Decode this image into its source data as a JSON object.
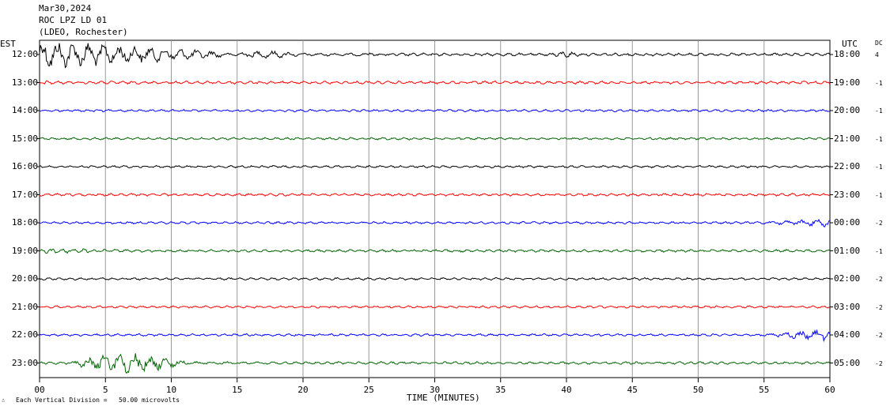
{
  "header": {
    "date": "Mar30,2024",
    "station": "ROC LPZ LD 01",
    "network": "(LDEO, Rochester)"
  },
  "left_zone": "EST",
  "right_zone": "UTC",
  "dc_label": "DC",
  "footer": {
    "scale_text": "Each Vertical Division =   50.00 microvolts",
    "corner_mark": "∴"
  },
  "chart_data": {
    "type": "line",
    "title": "",
    "xlabel": "TIME (MINUTES)",
    "ylabel": "",
    "xlim": [
      0,
      60
    ],
    "x_ticks": [
      "00",
      "5",
      "10",
      "15",
      "20",
      "25",
      "30",
      "35",
      "40",
      "45",
      "50",
      "55",
      "60"
    ],
    "grid": true,
    "trace_colors": [
      "#000000",
      "#ff0000",
      "#0000ff",
      "#006400"
    ],
    "rows": [
      {
        "est": "12:00",
        "utc": "18:00",
        "dc": "4",
        "base_amp": 2.0,
        "events": [
          {
            "start": 0,
            "end": 14,
            "amp": 20
          },
          {
            "start": 14,
            "end": 25,
            "amp": 6
          },
          {
            "start": 38,
            "end": 44,
            "amp": 5
          }
        ]
      },
      {
        "est": "13:00",
        "utc": "19:00",
        "dc": "-1",
        "base_amp": 2.0,
        "events": [
          {
            "start": 0,
            "end": 2,
            "amp": 4
          }
        ]
      },
      {
        "est": "14:00",
        "utc": "20:00",
        "dc": "-1",
        "base_amp": 1.6,
        "events": []
      },
      {
        "est": "15:00",
        "utc": "21:00",
        "dc": "-1",
        "base_amp": 1.6,
        "events": []
      },
      {
        "est": "16:00",
        "utc": "22:00",
        "dc": "-1",
        "base_amp": 1.6,
        "events": []
      },
      {
        "est": "17:00",
        "utc": "23:00",
        "dc": "-1",
        "base_amp": 1.8,
        "events": []
      },
      {
        "est": "18:00",
        "utc": "00:00",
        "dc": "-2",
        "base_amp": 1.6,
        "events": [
          {
            "start": 55,
            "end": 60,
            "amp": 6
          }
        ]
      },
      {
        "est": "19:00",
        "utc": "01:00",
        "dc": "-1",
        "base_amp": 1.8,
        "events": [
          {
            "start": 0,
            "end": 10,
            "amp": 4
          }
        ]
      },
      {
        "est": "20:00",
        "utc": "02:00",
        "dc": "-2",
        "base_amp": 1.6,
        "events": []
      },
      {
        "est": "21:00",
        "utc": "03:00",
        "dc": "-2",
        "base_amp": 1.6,
        "events": []
      },
      {
        "est": "22:00",
        "utc": "04:00",
        "dc": "-2",
        "base_amp": 1.6,
        "events": [
          {
            "start": 55,
            "end": 60,
            "amp": 8
          }
        ]
      },
      {
        "est": "23:00",
        "utc": "05:00",
        "dc": "-2",
        "base_amp": 1.8,
        "events": [
          {
            "start": 2,
            "end": 18,
            "amp": 16
          }
        ]
      }
    ]
  }
}
